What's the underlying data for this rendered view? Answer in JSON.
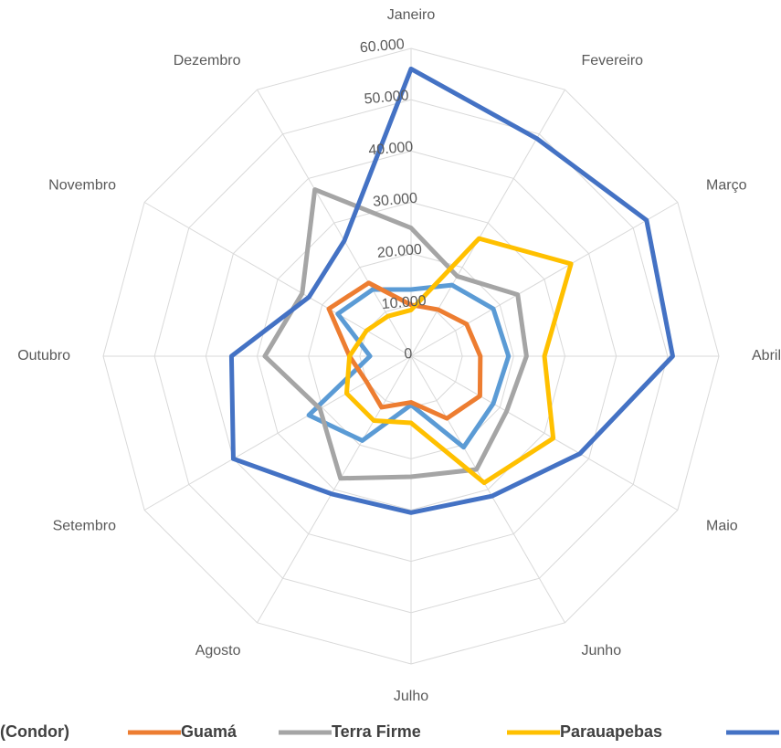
{
  "chart_data": {
    "type": "radar",
    "categories": [
      "Janeiro",
      "Fevereiro",
      "Março",
      "Abril",
      "Maio",
      "Junho",
      "Julho",
      "Agosto",
      "Setembro",
      "Outubro",
      "Novembro",
      "Dezembro"
    ],
    "series": [
      {
        "name": "(Condor)",
        "color": "#5b9bd5",
        "values": [
          13000,
          16000,
          18500,
          19000,
          18500,
          20500,
          9500,
          19000,
          23000,
          8000,
          16500,
          15000
        ]
      },
      {
        "name": "Guamá",
        "color": "#ed7d31",
        "values": [
          10000,
          10500,
          12500,
          13500,
          15500,
          14000,
          9000,
          11500,
          10000,
          12000,
          18500,
          16500
        ]
      },
      {
        "name": "Terra Firme",
        "color": "#a5a5a5",
        "values": [
          25000,
          18000,
          24000,
          22500,
          21500,
          25500,
          23500,
          27500,
          20500,
          28500,
          24500,
          37500
        ]
      },
      {
        "name": "Parauapebas",
        "color": "#ffc000",
        "values": [
          9000,
          26500,
          36000,
          26000,
          32000,
          28500,
          13000,
          14500,
          14500,
          12000,
          10000,
          9000
        ]
      },
      {
        "name": null,
        "color": "#4472c4",
        "values": [
          56000,
          49000,
          53000,
          51000,
          38000,
          31500,
          30500,
          31000,
          40000,
          35000,
          23000,
          26000
        ]
      }
    ],
    "ylim": [
      0,
      60000
    ],
    "yticks": [
      0,
      {
        "value": 10000,
        "label": "10.000"
      },
      {
        "value": 20000,
        "label": "20.000"
      },
      {
        "value": 30000,
        "label": "30.000"
      },
      {
        "value": 40000,
        "label": "40.000"
      },
      {
        "value": 50000,
        "label": "50.000"
      },
      {
        "value": 60000,
        "label": "60.000"
      }
    ],
    "grid": true,
    "legend": "bottom"
  }
}
